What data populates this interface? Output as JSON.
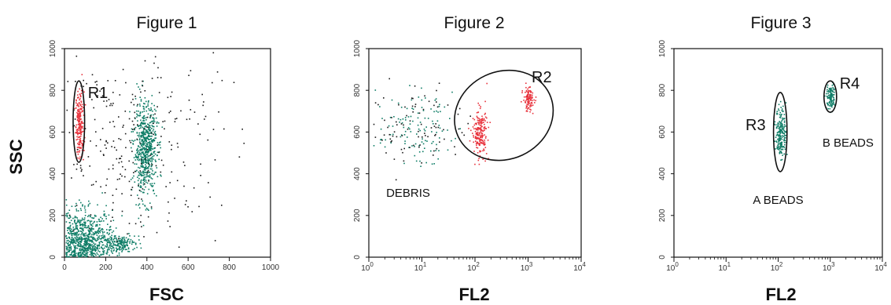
{
  "colors": {
    "gated": "#e8323c",
    "ungated": "#0e7d66",
    "background_events": "#1a1a1a",
    "frame": "#111111"
  },
  "shared": {
    "ylabel": "SSC"
  },
  "chart_data": [
    {
      "type": "scatter",
      "title": "Figure 1",
      "xlabel": "FSC",
      "ylabel": "SSC",
      "xscale": "linear",
      "xlim": [
        0,
        1000
      ],
      "ylim": [
        0,
        1000
      ],
      "x_ticks": [
        "0",
        "200",
        "400",
        "600",
        "800",
        "1000"
      ],
      "y_ticks": [
        "0",
        "200",
        "400",
        "600",
        "800",
        "1000"
      ],
      "gates": [
        {
          "name": "R1",
          "shape": "ellipse",
          "center": [
            70,
            650
          ],
          "radius": [
            28,
            195
          ]
        }
      ],
      "annotations": [],
      "populations": [
        {
          "label": "gated beads (R1)",
          "color": "gated",
          "center": [
            72,
            640
          ],
          "spread": [
            10,
            80
          ],
          "count": 220
        },
        {
          "label": "cells",
          "color": "ungated",
          "center": [
            390,
            520
          ],
          "spread": [
            28,
            110
          ],
          "count": 650
        },
        {
          "label": "debris",
          "color": "ungated",
          "center": [
            90,
            80
          ],
          "spread": [
            75,
            70
          ],
          "count": 900
        },
        {
          "label": "tail",
          "color": "ungated",
          "center": [
            260,
            70
          ],
          "spread": [
            40,
            20
          ],
          "count": 180
        },
        {
          "label": "scattered events",
          "color": "background_events",
          "center": [
            300,
            550
          ],
          "spread": [
            220,
            260
          ],
          "count": 320
        }
      ]
    },
    {
      "type": "scatter",
      "title": "Figure 2",
      "xlabel": "FL2",
      "ylabel": "SSC",
      "xscale": "log",
      "xlim": [
        1,
        10000
      ],
      "ylim": [
        0,
        1000
      ],
      "x_ticks": [
        "0",
        "1",
        "2",
        "3",
        "4"
      ],
      "y_ticks": [
        "0",
        "200",
        "400",
        "600",
        "800",
        "1000"
      ],
      "gates": [
        {
          "name": "R2",
          "shape": "ellipse",
          "center": [
            350,
            680
          ],
          "radius": [
            0.95,
            210
          ],
          "rotate": -25
        }
      ],
      "annotations": [
        {
          "text": "DEBRIS",
          "x": 5.5,
          "y": 290
        }
      ],
      "populations": [
        {
          "label": "A beads",
          "color": "gated",
          "center": [
            120,
            600
          ],
          "spread": [
            0.07,
            55
          ],
          "count": 200
        },
        {
          "label": "B beads",
          "color": "gated",
          "center": [
            1000,
            760
          ],
          "spread": [
            0.05,
            30
          ],
          "count": 120
        },
        {
          "label": "debris",
          "color": "ungated",
          "center": [
            7,
            620
          ],
          "spread": [
            0.35,
            80
          ],
          "count": 120
        },
        {
          "label": "scattered",
          "color": "background_events",
          "center": [
            8,
            630
          ],
          "spread": [
            0.45,
            100
          ],
          "count": 90
        }
      ]
    },
    {
      "type": "scatter",
      "title": "Figure 3",
      "xlabel": "FL2",
      "ylabel": "SSC",
      "xscale": "log",
      "xlim": [
        1,
        10000
      ],
      "ylim": [
        0,
        1000
      ],
      "x_ticks": [
        "0",
        "1",
        "2",
        "3",
        "4"
      ],
      "y_ticks": [
        "0",
        "200",
        "400",
        "600",
        "800",
        "1000"
      ],
      "gates": [
        {
          "name": "R3",
          "shape": "ellipse",
          "center": [
            110,
            600
          ],
          "radius": [
            0.13,
            190
          ]
        },
        {
          "name": "R4",
          "shape": "ellipse",
          "center": [
            1000,
            770
          ],
          "radius": [
            0.12,
            75
          ]
        }
      ],
      "annotations": [
        {
          "text": "A BEADS",
          "x": 100,
          "y": 255
        },
        {
          "text": "B BEADS",
          "x": 2200,
          "y": 530
        }
      ],
      "populations": [
        {
          "label": "A beads",
          "color": "ungated",
          "center": [
            110,
            600
          ],
          "spread": [
            0.05,
            60
          ],
          "count": 200
        },
        {
          "label": "B beads",
          "color": "ungated",
          "center": [
            1000,
            770
          ],
          "spread": [
            0.04,
            30
          ],
          "count": 110
        }
      ]
    }
  ]
}
